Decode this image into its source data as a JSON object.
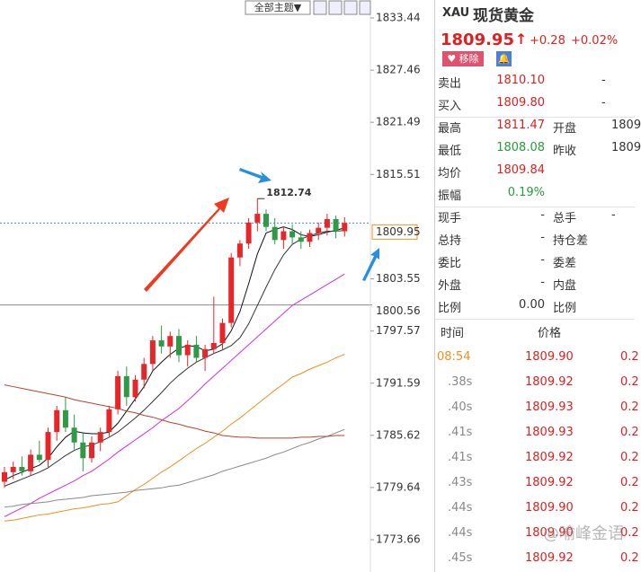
{
  "toolbar": {
    "theme_button": "全部主题▼"
  },
  "chart_data": {
    "type": "candlestick",
    "categories": [
      null,
      null,
      null,
      null,
      null,
      null,
      null,
      null,
      null,
      null,
      null,
      null,
      null,
      null,
      null,
      null,
      null,
      null,
      null,
      null,
      null,
      null,
      null,
      null,
      null,
      null,
      null,
      null,
      null,
      null,
      null,
      null,
      null,
      null,
      null,
      null,
      null,
      null,
      null,
      null
    ],
    "open": [
      1780.3,
      1781.4,
      1782.0,
      1781.5,
      1783.4,
      1782.8,
      1786.0,
      1788.5,
      1786.5,
      1784.8,
      1783.0,
      1784.8,
      1786.0,
      1788.6,
      1792.4,
      1790.0,
      1792.0,
      1793.8,
      1796.5,
      1795.8,
      1797.0,
      1794.8,
      1796.0,
      1794.5,
      1795.5,
      1796.2,
      1798.5,
      1806.0,
      1807.6,
      1810.0,
      1811.0,
      1809.5,
      1808.0,
      1809.0,
      1808.3,
      1807.8,
      1808.8,
      1809.4,
      1810.4,
      1809.0
    ],
    "high": [
      1782.0,
      1782.6,
      1783.2,
      1784.0,
      1785.0,
      1786.5,
      1789.0,
      1790.0,
      1788.0,
      1786.0,
      1785.5,
      1786.5,
      1789.0,
      1793.0,
      1793.5,
      1792.5,
      1794.5,
      1797.0,
      1798.2,
      1797.5,
      1797.8,
      1796.5,
      1797.0,
      1796.0,
      1801.5,
      1799.0,
      1806.5,
      1808.0,
      1810.5,
      1812.74,
      1811.5,
      1810.5,
      1809.5,
      1809.8,
      1809.0,
      1809.2,
      1810.0,
      1811.0,
      1810.8,
      1810.6
    ],
    "low": [
      1779.6,
      1780.6,
      1781.0,
      1781.0,
      1782.5,
      1782.0,
      1785.0,
      1786.0,
      1784.0,
      1781.5,
      1782.5,
      1783.8,
      1785.5,
      1788.0,
      1789.0,
      1789.5,
      1791.0,
      1793.0,
      1795.0,
      1794.5,
      1794.0,
      1793.5,
      1794.0,
      1793.0,
      1795.0,
      1795.5,
      1798.0,
      1805.0,
      1807.0,
      1809.0,
      1809.0,
      1807.5,
      1807.0,
      1807.5,
      1807.0,
      1807.2,
      1808.0,
      1808.5,
      1808.2,
      1808.4
    ],
    "close": [
      1781.4,
      1782.0,
      1781.5,
      1783.4,
      1782.8,
      1786.0,
      1788.5,
      1786.5,
      1784.8,
      1783.0,
      1784.8,
      1786.0,
      1788.6,
      1792.4,
      1790.0,
      1792.0,
      1793.8,
      1796.5,
      1795.8,
      1797.0,
      1794.8,
      1796.0,
      1794.5,
      1795.5,
      1796.2,
      1798.5,
      1806.0,
      1807.6,
      1810.0,
      1811.0,
      1809.5,
      1808.0,
      1809.0,
      1808.3,
      1807.8,
      1808.8,
      1809.4,
      1810.4,
      1809.0,
      1809.95
    ],
    "up_color": "#e8262a",
    "down_color": "#2f9a45",
    "series": [
      {
        "color": "#111111",
        "values": [
          1780.5,
          1781.0,
          1781.4,
          1781.8,
          1782.2,
          1783.0,
          1784.3,
          1785.4,
          1786.1,
          1785.9,
          1785.8,
          1785.8,
          1786.0,
          1787.0,
          1788.4,
          1789.8,
          1791.2,
          1793.0,
          1794.0,
          1794.9,
          1795.6,
          1795.9,
          1795.8,
          1795.3,
          1795.5,
          1796.1,
          1797.6,
          1799.8,
          1803.0,
          1806.4,
          1808.8,
          1809.2,
          1809.5,
          1809.2,
          1808.6,
          1808.4,
          1808.6,
          1808.9,
          1809.1,
          1809.4
        ]
      },
      {
        "color": "#333333",
        "values": [
          1779.8,
          1780.2,
          1780.6,
          1781.0,
          1781.4,
          1781.9,
          1782.6,
          1783.3,
          1783.9,
          1784.3,
          1784.5,
          1784.9,
          1785.4,
          1786.0,
          1786.8,
          1787.6,
          1788.5,
          1789.5,
          1790.5,
          1791.6,
          1792.5,
          1793.3,
          1794.0,
          1794.5,
          1795.0,
          1795.4,
          1795.9,
          1796.8,
          1798.4,
          1800.5,
          1802.6,
          1804.6,
          1806.3,
          1807.5,
          1808.1,
          1808.5,
          1808.8,
          1809.0,
          1809.0,
          1809.1
        ]
      },
      {
        "color": "#d62fd6",
        "values": [
          1776.3,
          1776.8,
          1777.3,
          1777.8,
          1778.4,
          1778.9,
          1779.4,
          1779.9,
          1780.4,
          1781.0,
          1781.5,
          1782.2,
          1782.9,
          1783.7,
          1784.4,
          1785.1,
          1785.8,
          1786.5,
          1787.3,
          1788.0,
          1788.7,
          1789.6,
          1790.5,
          1791.5,
          1792.4,
          1793.3,
          1794.2,
          1795.1,
          1796.0,
          1796.9,
          1797.8,
          1798.7,
          1799.6,
          1800.5,
          1801.1,
          1801.7,
          1802.3,
          1802.9,
          1803.5,
          1804.1
        ]
      },
      {
        "color": "#f0901e",
        "values": [
          1775.8,
          1775.9,
          1776.1,
          1776.3,
          1776.5,
          1776.6,
          1776.8,
          1777.0,
          1777.2,
          1777.3,
          1777.5,
          1777.7,
          1777.8,
          1778.0,
          1778.7,
          1779.4,
          1780.0,
          1780.7,
          1781.4,
          1782.0,
          1782.7,
          1783.4,
          1784.1,
          1784.7,
          1785.4,
          1786.1,
          1786.9,
          1787.6,
          1788.4,
          1789.2,
          1790.0,
          1790.8,
          1791.5,
          1792.3,
          1792.7,
          1793.2,
          1793.6,
          1794.0,
          1794.5,
          1794.9
        ]
      },
      {
        "color": "#888888",
        "values": [
          1777.4,
          1777.5,
          1777.7,
          1777.8,
          1777.9,
          1778.0,
          1778.2,
          1778.3,
          1778.4,
          1778.5,
          1778.7,
          1778.8,
          1778.9,
          1779.0,
          1779.1,
          1779.3,
          1779.4,
          1779.5,
          1779.6,
          1779.8,
          1779.9,
          1780.2,
          1780.5,
          1780.8,
          1781.1,
          1781.5,
          1781.8,
          1782.1,
          1782.4,
          1782.7,
          1783.0,
          1783.4,
          1783.7,
          1784.1,
          1784.5,
          1784.8,
          1785.2,
          1785.5,
          1785.9,
          1786.3
        ]
      },
      {
        "color": "#b5432e",
        "values": [
          1791.4,
          1791.2,
          1791.0,
          1790.8,
          1790.6,
          1790.4,
          1790.2,
          1790.0,
          1789.7,
          1789.5,
          1789.3,
          1789.1,
          1788.9,
          1788.7,
          1788.4,
          1788.2,
          1787.9,
          1787.7,
          1787.4,
          1787.1,
          1786.9,
          1786.6,
          1786.4,
          1786.1,
          1785.9,
          1785.6,
          1785.5,
          1785.4,
          1785.4,
          1785.3,
          1785.3,
          1785.3,
          1785.3,
          1785.3,
          1785.4,
          1785.4,
          1785.5,
          1785.5,
          1785.6,
          1785.6
        ]
      }
    ],
    "ylim": [
      1769.96,
      1835.5
    ],
    "yticks": [
      1833.44,
      1827.46,
      1821.49,
      1815.51,
      1803.55,
      1797.57,
      1791.59,
      1785.62,
      1779.64,
      1773.66
    ],
    "high_annotation": "1812.74",
    "current_price": 1809.95,
    "reference_line": 1800.56
  },
  "quote": {
    "symbol": "XAU",
    "name": "现货黄金",
    "price": "1809.95",
    "change": "+0.28",
    "change_pct": "+0.02%",
    "remove_button": "移除",
    "rows": [
      [
        "卖出",
        "1810.10",
        "-"
      ],
      [
        "买入",
        "1809.80",
        "-"
      ],
      [
        "最高",
        "1811.47",
        "开盘",
        "1809"
      ],
      [
        "最低",
        "1808.08",
        "昨收",
        "1809"
      ],
      [
        "均价",
        "1809.84"
      ],
      [
        "振幅",
        "0.19%"
      ],
      [
        "现手",
        "-",
        "总手",
        "-"
      ],
      [
        "总持",
        "-",
        "持仓差"
      ],
      [
        "委比",
        "-",
        "委差"
      ],
      [
        "外盘",
        "-",
        "内盘"
      ],
      [
        "比例",
        "0.00",
        "比例"
      ]
    ],
    "ticks_header": [
      "时间",
      "价格"
    ],
    "ticks": [
      [
        "08:54",
        "1809.90",
        "0.2"
      ],
      [
        ".38s",
        "1809.92",
        "0.2"
      ],
      [
        ".40s",
        "1809.93",
        "0.2"
      ],
      [
        ".41s",
        "1809.93",
        "0.2"
      ],
      [
        ".41s",
        "1809.92",
        "0.2"
      ],
      [
        ".43s",
        "1809.92",
        "0.2"
      ],
      [
        ".44s",
        "1809.90",
        "0.2"
      ],
      [
        ".44s",
        "1809.90",
        "0.2"
      ],
      [
        ".45s",
        "1809.92",
        "0.2"
      ]
    ]
  },
  "watermark": "@喻峰金语"
}
